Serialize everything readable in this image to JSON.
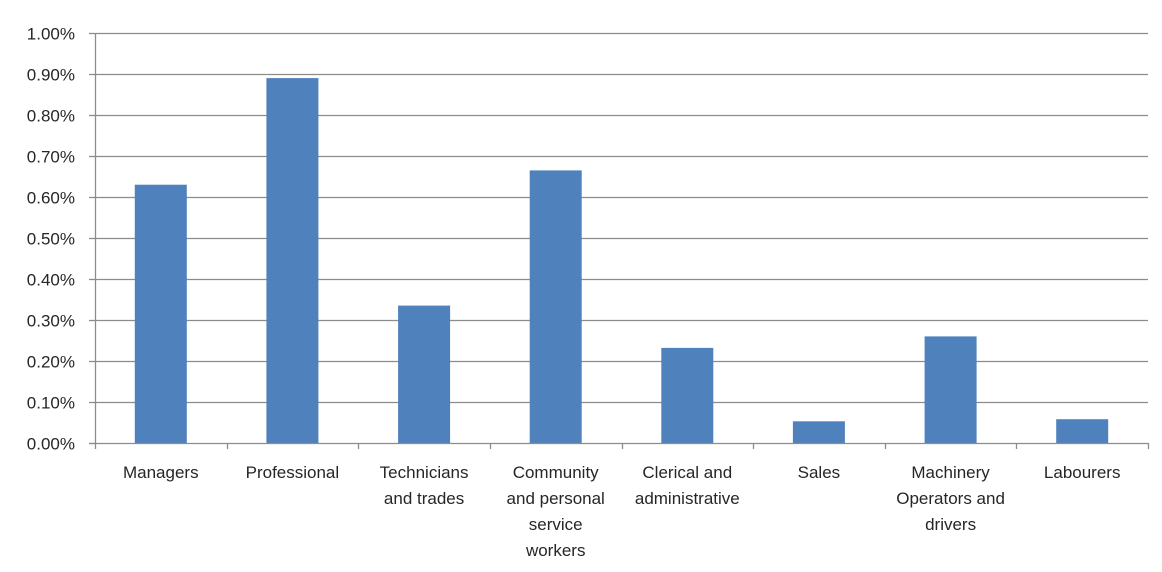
{
  "chart_data": {
    "type": "bar",
    "categories": [
      [
        "Managers"
      ],
      [
        "Professional"
      ],
      [
        "Technicians",
        "and trades"
      ],
      [
        "Community",
        "and personal",
        "service",
        "workers"
      ],
      [
        "Clerical and",
        "administrative"
      ],
      [
        "Sales"
      ],
      [
        "Machinery",
        "Operators and",
        "drivers"
      ],
      [
        "Labourers"
      ]
    ],
    "values": [
      0.0063,
      0.0089,
      0.00335,
      0.00665,
      0.00232,
      0.00053,
      0.0026,
      0.00058
    ],
    "ylim": [
      0,
      0.01
    ],
    "yticks": [
      0,
      0.001,
      0.002,
      0.003,
      0.004,
      0.005,
      0.006,
      0.007,
      0.008,
      0.009,
      0.01
    ],
    "ytick_labels": [
      "0.00%",
      "0.10%",
      "0.20%",
      "0.30%",
      "0.40%",
      "0.50%",
      "0.60%",
      "0.70%",
      "0.80%",
      "0.90%",
      "1.00%"
    ],
    "grid": true,
    "legend": "none",
    "bar_color": "#4f81bd"
  }
}
